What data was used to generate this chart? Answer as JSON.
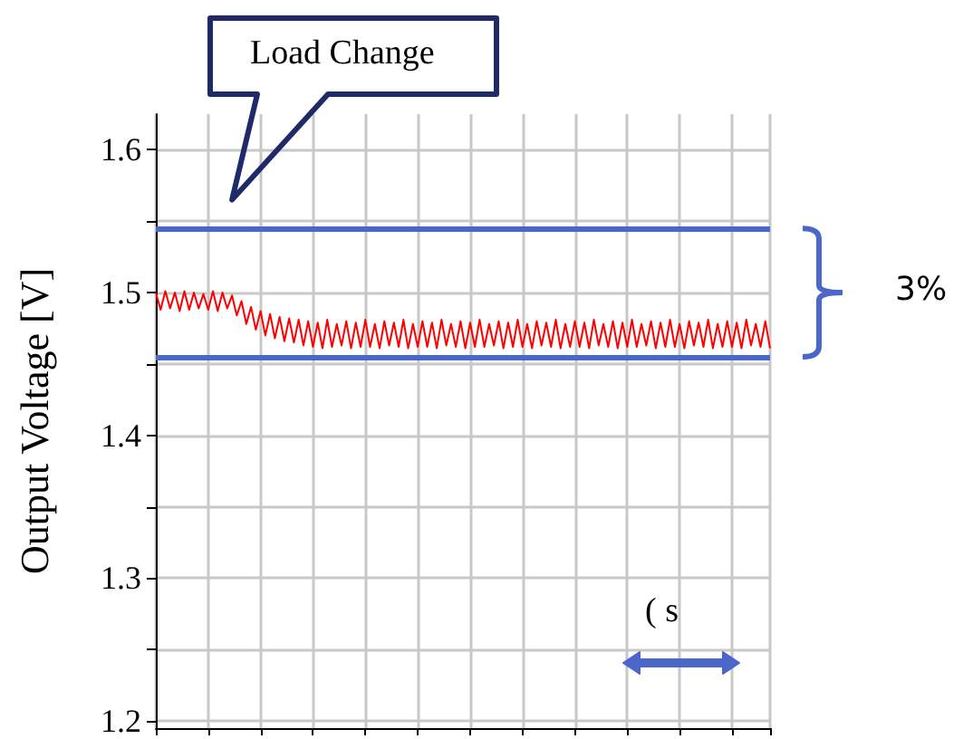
{
  "chart_data": {
    "type": "line",
    "ylabel": "Output Voltage [V]",
    "categories": [
      null,
      null,
      null,
      null,
      null,
      null,
      null,
      null,
      null,
      null,
      null,
      null,
      null,
      null,
      null,
      null,
      null,
      null,
      null,
      null,
      null,
      null,
      null,
      null,
      null,
      null,
      null,
      null,
      null,
      null,
      null,
      null,
      null,
      null,
      null,
      null,
      null,
      null,
      null,
      null,
      null,
      null,
      null,
      null,
      null,
      null,
      null,
      null,
      null,
      null,
      null,
      null,
      null,
      null,
      null,
      null,
      null,
      null,
      null,
      null,
      null,
      null,
      null,
      null,
      null,
      null,
      null,
      null,
      null,
      null,
      null,
      null,
      null,
      null,
      null,
      null,
      null,
      null,
      null,
      null,
      null,
      null,
      null,
      null,
      null,
      null,
      null,
      null,
      null,
      null,
      null,
      null,
      null,
      null,
      null,
      null,
      null,
      null,
      null,
      null,
      null,
      null,
      null,
      null,
      null,
      null,
      null,
      null,
      null,
      null,
      null,
      null,
      null,
      null,
      null,
      null,
      null,
      null,
      null,
      null,
      null,
      null,
      null,
      null,
      null,
      null,
      null,
      null,
      null,
      null
    ],
    "series": [
      {
        "color": "#ff0000",
        "values": [
          1.5,
          1.488,
          1.501,
          1.489,
          1.5,
          1.487,
          1.501,
          1.488,
          1.5,
          1.489,
          1.499,
          1.488,
          1.501,
          1.487,
          1.5,
          1.489,
          1.498,
          1.484,
          1.494,
          1.478,
          1.49,
          1.474,
          1.487,
          1.47,
          1.485,
          1.468,
          1.483,
          1.466,
          1.482,
          1.465,
          1.481,
          1.463,
          1.48,
          1.462,
          1.479,
          1.461,
          1.481,
          1.462,
          1.478,
          1.463,
          1.48,
          1.461,
          1.479,
          1.462,
          1.481,
          1.462,
          1.478,
          1.461,
          1.48,
          1.463,
          1.479,
          1.462,
          1.481,
          1.461,
          1.478,
          1.462,
          1.48,
          1.462,
          1.479,
          1.461,
          1.481,
          1.463,
          1.478,
          1.462,
          1.48,
          1.461,
          1.479,
          1.462,
          1.481,
          1.462,
          1.478,
          1.463,
          1.48,
          1.461,
          1.479,
          1.462,
          1.481,
          1.462,
          1.478,
          1.461,
          1.48,
          1.463,
          1.479,
          1.462,
          1.481,
          1.461,
          1.478,
          1.462,
          1.48,
          1.462,
          1.479,
          1.461,
          1.481,
          1.463,
          1.478,
          1.462,
          1.48,
          1.461,
          1.479,
          1.462,
          1.481,
          1.462,
          1.478,
          1.463,
          1.48,
          1.461,
          1.479,
          1.462,
          1.481,
          1.462,
          1.478,
          1.461,
          1.48,
          1.463,
          1.479,
          1.462,
          1.481,
          1.461,
          1.478,
          1.462,
          1.48,
          1.462,
          1.479,
          1.461,
          1.481,
          1.463,
          1.478,
          1.462,
          1.48,
          1.461
        ]
      }
    ],
    "ylim": [
      1.195,
      1.625
    ],
    "yticks": [
      1.2,
      {
        "value": 1.25,
        "label": null
      },
      1.3,
      {
        "value": 1.35,
        "label": null
      },
      1.4,
      {
        "value": 1.45,
        "label": null
      },
      1.5,
      {
        "value": 1.55,
        "label": null
      },
      1.6
    ],
    "ref_lines": [
      {
        "axis": "y",
        "value": 1.545,
        "color": "#4a67c9"
      },
      {
        "axis": "y",
        "value": 1.455,
        "color": "#4a67c9"
      }
    ],
    "annotations": [
      "Load Change",
      "3%",
      "( s"
    ],
    "tick_labels": "y",
    "grid": true,
    "line_style": "solid"
  }
}
